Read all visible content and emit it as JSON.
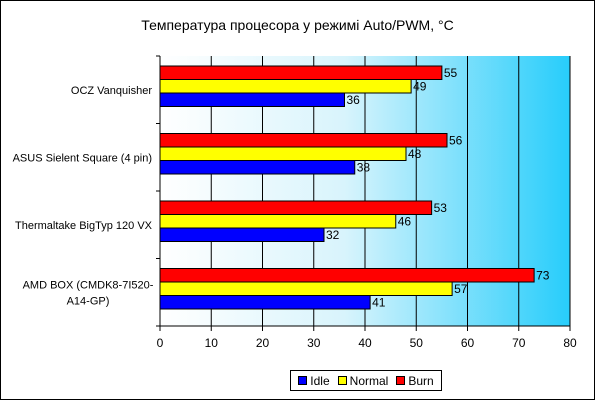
{
  "chart_data": {
    "type": "bar",
    "orientation": "horizontal",
    "title": "Температура процесора у режимі Auto/PWM, °C",
    "categories": [
      [
        "OCZ Vanquisher"
      ],
      [
        "ASUS Sielent Square (4 pin)"
      ],
      [
        "Thermaltake BigTyp 120 VX"
      ],
      [
        "AMD BOX (CMDK8-7I520-",
        "A14-GP)"
      ]
    ],
    "series": [
      {
        "name": "Burn",
        "color": "#ff0000",
        "values": [
          55,
          56,
          53,
          73
        ]
      },
      {
        "name": "Normal",
        "color": "#ffff00",
        "values": [
          49,
          48,
          46,
          57
        ]
      },
      {
        "name": "Idle",
        "color": "#0000ff",
        "values": [
          36,
          38,
          32,
          41
        ]
      }
    ],
    "legend_order": [
      "Idle",
      "Normal",
      "Burn"
    ],
    "xlim": [
      0,
      80
    ],
    "xticks": [
      0,
      10,
      20,
      30,
      40,
      50,
      60,
      70,
      80
    ],
    "grid": true,
    "data_labels": true,
    "legend_position": "bottom-right",
    "plot_background": "gradient light-blue to cyan"
  }
}
